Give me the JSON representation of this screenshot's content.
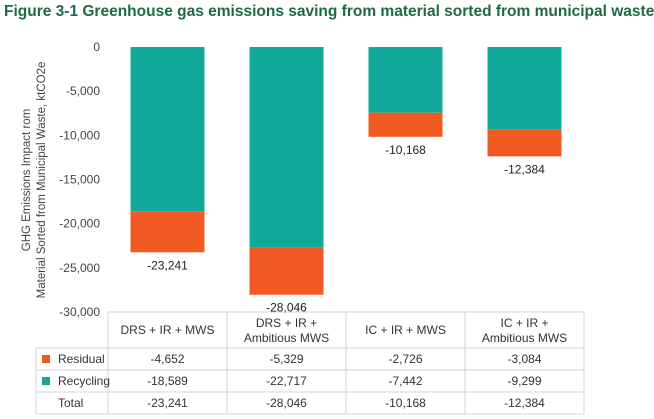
{
  "chart_data": {
    "type": "bar",
    "stacked": true,
    "title": "Figure 3-1 Greenhouse gas emissions saving from material sorted from municipal waste",
    "ylabel_lines": [
      "GHG Emissions Impact rom",
      "Material Sorted from Municipal Waste, ktCO2e"
    ],
    "xlabel": "",
    "ylim": [
      -30000,
      0
    ],
    "yticks": [
      0,
      -5000,
      -10000,
      -15000,
      -20000,
      -25000,
      -30000
    ],
    "ytick_labels": [
      "0",
      "-5,000",
      "-10,000",
      "-15,000",
      "-20,000",
      "-25,000",
      "-30,000"
    ],
    "grid": false,
    "legend": "data-table",
    "categories": [
      [
        "DRS + IR + MWS"
      ],
      [
        "DRS + IR +",
        "Ambitious MWS"
      ],
      [
        "IC + IR + MWS"
      ],
      [
        "IC + IR +",
        "Ambitious MWS"
      ]
    ],
    "series": [
      {
        "name": "Recycling",
        "color": "#12a89a",
        "values": [
          -18589,
          -22717,
          -7442,
          -9299
        ]
      },
      {
        "name": "Residual",
        "color": "#f15a22",
        "values": [
          -4652,
          -5329,
          -2726,
          -3084
        ]
      }
    ],
    "totals": [
      -23241,
      -28046,
      -10168,
      -12384
    ],
    "total_labels": [
      "-23,241",
      "-28,046",
      "-10,168",
      "-12,384"
    ],
    "table": {
      "rows": [
        {
          "name": "Residual",
          "color": "#f15a22",
          "cells": [
            "-4,652",
            "-5,329",
            "-2,726",
            "-3,084"
          ]
        },
        {
          "name": "Recycling",
          "color": "#12a89a",
          "cells": [
            "-18,589",
            "-22,717",
            "-7,442",
            "-9,299"
          ]
        },
        {
          "name": "Total",
          "color": "",
          "cells": [
            "-23,241",
            "-28,046",
            "-10,168",
            "-12,384"
          ]
        }
      ]
    }
  }
}
